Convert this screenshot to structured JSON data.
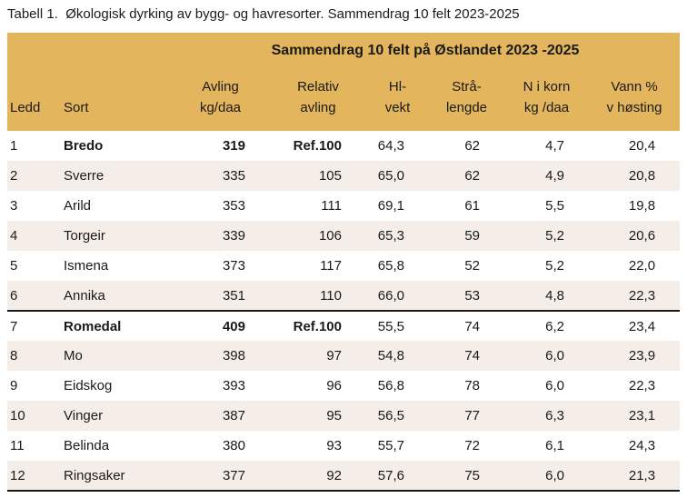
{
  "page_title": "Tabell 1.  Økologisk dyrking av bygg- og havresorter. Sammendrag 10 felt 2023-2025",
  "colors": {
    "band": "#E3B55C",
    "row_alt": "#F5EEE8",
    "text": "#1A1A1A",
    "divider": "#1A1A1A"
  },
  "table": {
    "band_title": "Sammendrag 10 felt på Østlandet 2023 -2025",
    "headers": {
      "ledd": "Ledd",
      "sort": "Sort",
      "numeric": [
        {
          "line1": "Avling",
          "line2": "kg/daa"
        },
        {
          "line1": "Relativ",
          "line2": "avling"
        },
        {
          "line1": "Hl-",
          "line2": "vekt"
        },
        {
          "line1": "Strå-",
          "line2": "lengde"
        },
        {
          "line1": "N i korn",
          "line2": "kg /daa"
        },
        {
          "line1": "Vann %",
          "line2": "v høsting"
        }
      ]
    },
    "rows": [
      {
        "ledd": "1",
        "sort": "Bredo",
        "avling": "319",
        "relativ": "Ref.100",
        "hl_vekt": "64,3",
        "stralengde": "62",
        "n_i_korn": "4,7",
        "vann": "20,4",
        "reference": true,
        "divider_below": false
      },
      {
        "ledd": "2",
        "sort": "Sverre",
        "avling": "335",
        "relativ": "105",
        "hl_vekt": "65,0",
        "stralengde": "62",
        "n_i_korn": "4,9",
        "vann": "20,8",
        "reference": false,
        "divider_below": false
      },
      {
        "ledd": "3",
        "sort": "Arild",
        "avling": "353",
        "relativ": "111",
        "hl_vekt": "69,1",
        "stralengde": "61",
        "n_i_korn": "5,5",
        "vann": "19,8",
        "reference": false,
        "divider_below": false
      },
      {
        "ledd": "4",
        "sort": "Torgeir",
        "avling": "339",
        "relativ": "106",
        "hl_vekt": "65,3",
        "stralengde": "59",
        "n_i_korn": "5,2",
        "vann": "20,6",
        "reference": false,
        "divider_below": false
      },
      {
        "ledd": "5",
        "sort": "Ismena",
        "avling": "373",
        "relativ": "117",
        "hl_vekt": "65,8",
        "stralengde": "52",
        "n_i_korn": "5,2",
        "vann": "22,0",
        "reference": false,
        "divider_below": false
      },
      {
        "ledd": "6",
        "sort": "Annika",
        "avling": "351",
        "relativ": "110",
        "hl_vekt": "66,0",
        "stralengde": "53",
        "n_i_korn": "4,8",
        "vann": "22,3",
        "reference": false,
        "divider_below": true
      },
      {
        "ledd": "7",
        "sort": "Romedal",
        "avling": "409",
        "relativ": "Ref.100",
        "hl_vekt": "55,5",
        "stralengde": "74",
        "n_i_korn": "6,2",
        "vann": "23,4",
        "reference": true,
        "divider_below": false
      },
      {
        "ledd": "8",
        "sort": "Mo",
        "avling": "398",
        "relativ": "97",
        "hl_vekt": "54,8",
        "stralengde": "74",
        "n_i_korn": "6,0",
        "vann": "23,9",
        "reference": false,
        "divider_below": false
      },
      {
        "ledd": "9",
        "sort": "Eidskog",
        "avling": "393",
        "relativ": "96",
        "hl_vekt": "56,8",
        "stralengde": "78",
        "n_i_korn": "6,0",
        "vann": "22,3",
        "reference": false,
        "divider_below": false
      },
      {
        "ledd": "10",
        "sort": "Vinger",
        "avling": "387",
        "relativ": "95",
        "hl_vekt": "56,5",
        "stralengde": "77",
        "n_i_korn": "6,3",
        "vann": "23,1",
        "reference": false,
        "divider_below": false
      },
      {
        "ledd": "11",
        "sort": "Belinda",
        "avling": "380",
        "relativ": "93",
        "hl_vekt": "55,7",
        "stralengde": "72",
        "n_i_korn": "6,1",
        "vann": "24,3",
        "reference": false,
        "divider_below": false
      },
      {
        "ledd": "12",
        "sort": "Ringsaker",
        "avling": "377",
        "relativ": "92",
        "hl_vekt": "57,6",
        "stralengde": "75",
        "n_i_korn": "6,0",
        "vann": "21,3",
        "reference": false,
        "divider_below": true
      }
    ]
  }
}
